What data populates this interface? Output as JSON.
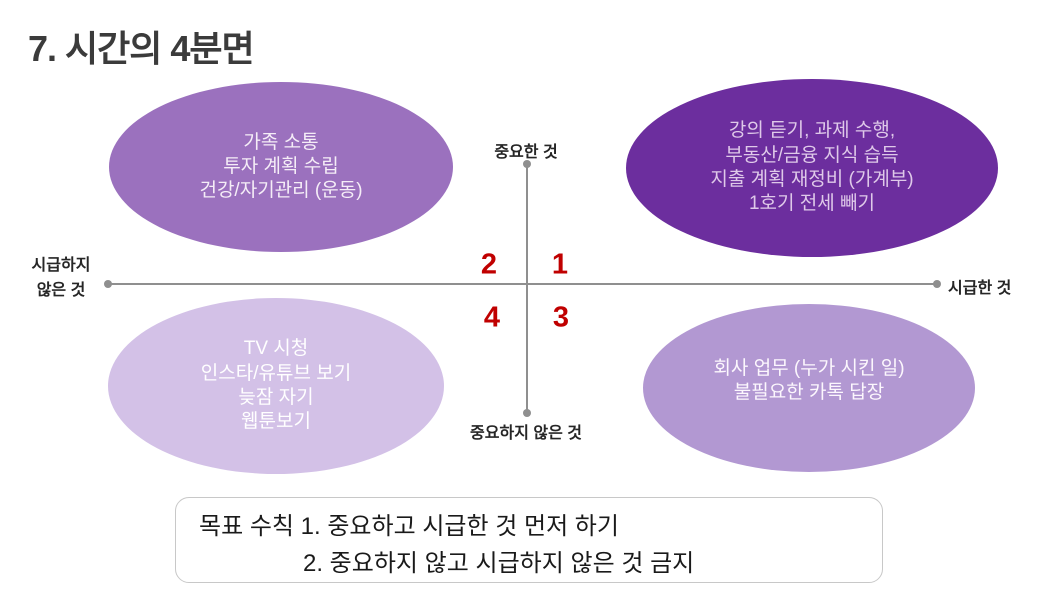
{
  "slide": {
    "title": "7. 시간의 4분면"
  },
  "quadrants": {
    "q1": {
      "number": "1",
      "fill": "#6C2E9E",
      "text_color": "#DFC9E9",
      "lines": [
        "강의 듣기, 과제 수행,",
        "부동산/금융 지식 습득",
        "지출 계획 재정비 (가계부)",
        "1호기 전세 빼기"
      ]
    },
    "q2": {
      "number": "2",
      "fill": "#9B71BE",
      "text_color": "#F5EDF7",
      "lines": [
        "가족 소통",
        "투자 계획 수립",
        "건강/자기관리 (운동)"
      ]
    },
    "q3": {
      "number": "3",
      "fill": "#B298D2",
      "text_color": "#FCF7FD",
      "lines": [
        "회사 업무 (누가 시킨 일)",
        "불필요한 카톡 답장"
      ]
    },
    "q4": {
      "number": "4",
      "fill": "#D3C1E7",
      "text_color": "#FFFFFF",
      "lines": [
        "TV 시청",
        "인스타/유튜브 보기",
        "늦잠 자기",
        "웹툰보기"
      ]
    }
  },
  "axes": {
    "top_label": "중요한 것",
    "bottom_label": "중요하지 않은 것",
    "left_label": [
      "시급하지",
      "않은 것"
    ],
    "right_label": "시급한 것",
    "line_color": "#8F8F8F",
    "number_color": "#C00000"
  },
  "goal_box": {
    "line1": "목표 수칙 1. 중요하고 시급한 것 먼저 하기",
    "line2": "2. 중요하지 않고 시급하지 않은 것 금지"
  }
}
